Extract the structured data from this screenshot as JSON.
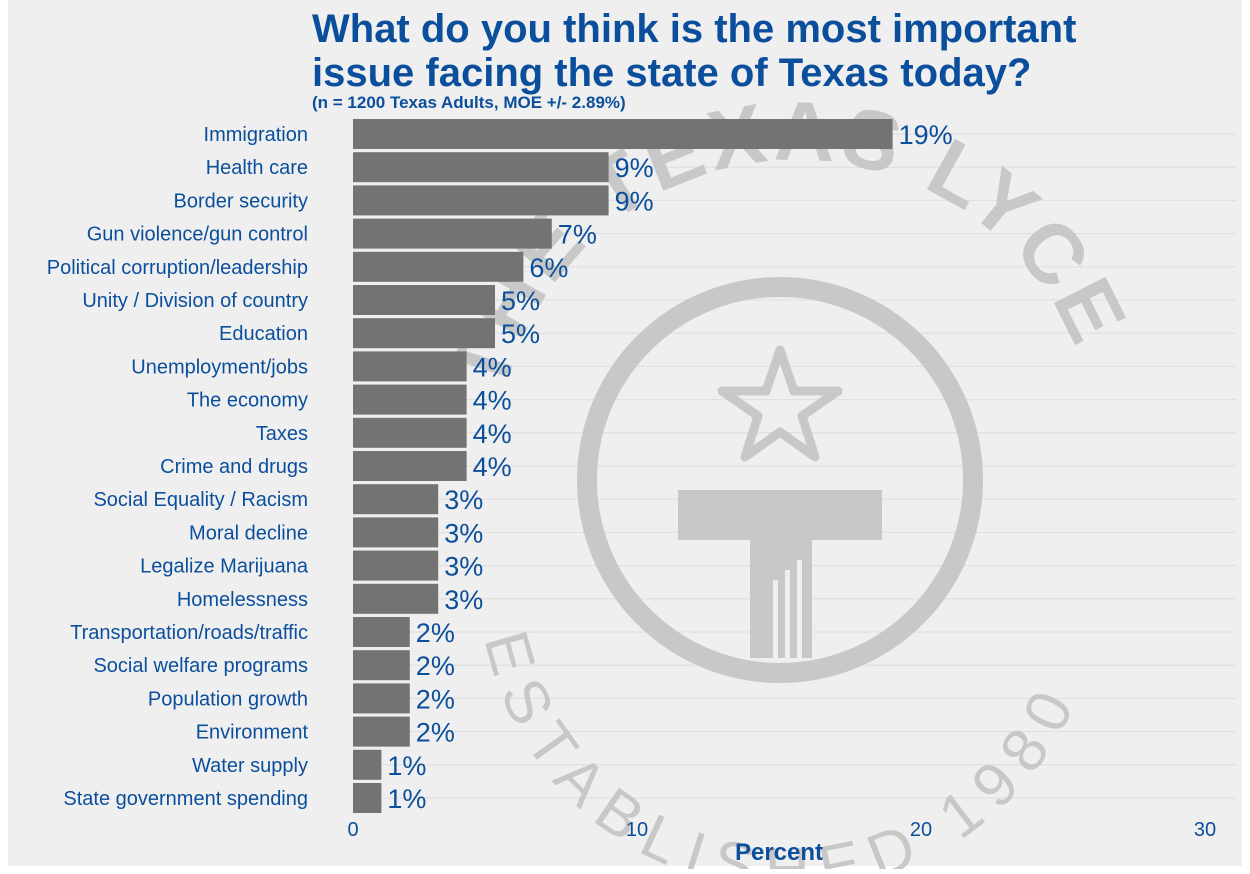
{
  "chart_data": {
    "type": "bar",
    "orientation": "horizontal",
    "title_line1": "What do you think is the most important",
    "title_line2": "issue facing the state of Texas today?",
    "subtitle": "(n = 1200 Texas Adults, MOE +/- 2.89%)",
    "xlabel": "Percent",
    "ylabel": "",
    "xlim": [
      0,
      30
    ],
    "x_ticks": [
      "0",
      "10",
      "20",
      "30"
    ],
    "grid": true,
    "categories": [
      "Immigration",
      "Health care",
      "Border security",
      "Gun violence/gun control",
      "Political corruption/leadership",
      "Unity / Division of country",
      "Education",
      "Unemployment/jobs",
      "The economy",
      "Taxes",
      "Crime and drugs",
      "Social Equality / Racism",
      "Moral decline",
      "Legalize Marijuana",
      "Homelessness",
      "Transportation/roads/traffic",
      "Social welfare programs",
      "Population growth",
      "Environment",
      "Water supply",
      "State government spending"
    ],
    "values": [
      19,
      9,
      9,
      7,
      6,
      5,
      5,
      4,
      4,
      4,
      4,
      3,
      3,
      3,
      3,
      2,
      2,
      2,
      2,
      1,
      1
    ],
    "data_labels": [
      "19%",
      "9%",
      "9%",
      "7%",
      "6%",
      "5%",
      "5%",
      "4%",
      "4%",
      "4%",
      "4%",
      "3%",
      "3%",
      "3%",
      "3%",
      "2%",
      "2%",
      "2%",
      "2%",
      "1%",
      "1%"
    ]
  },
  "watermark": {
    "text_top": "THE TEXAS LYCEUM",
    "text_bottom": "ESTABLISHED 1980",
    "icon": "lyceum-star-t-logo"
  },
  "colors": {
    "panel": "#efefef",
    "bar": "#737373",
    "text": "#0b4f9c",
    "watermark": "#c8c8c8",
    "grid": "#dedede"
  }
}
